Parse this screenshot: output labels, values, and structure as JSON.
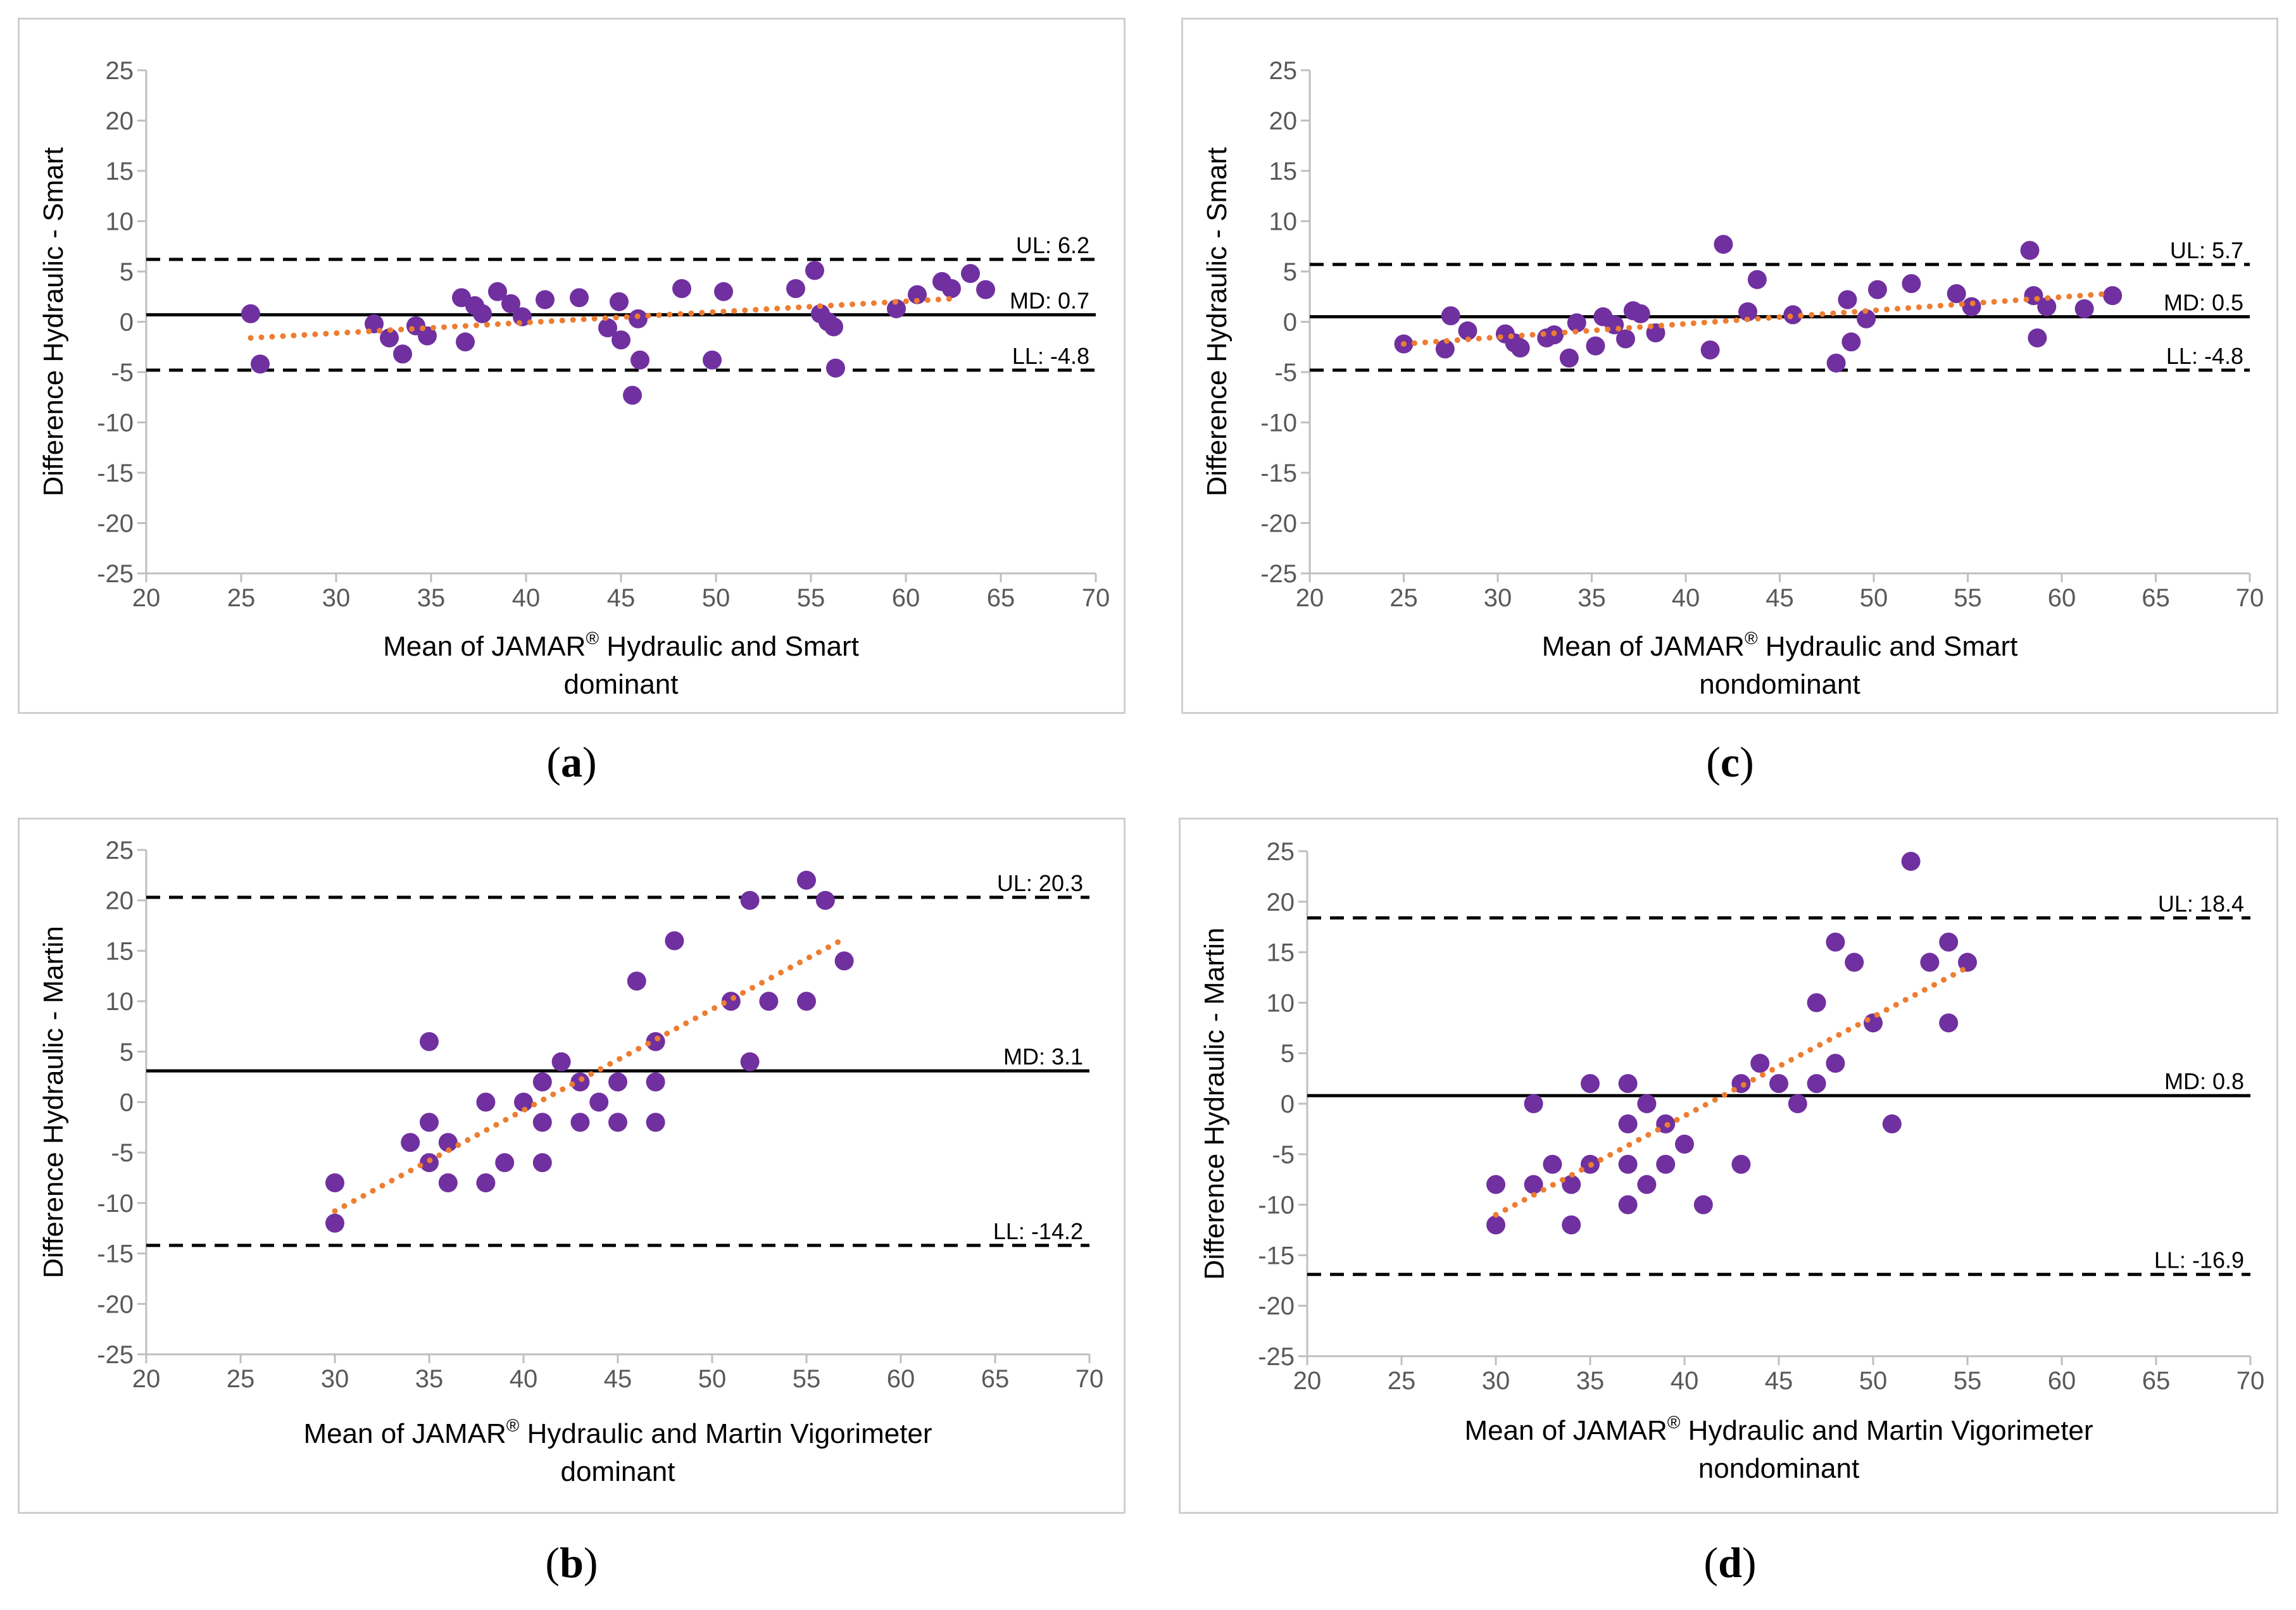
{
  "chart_data": [
    {
      "panel": "a",
      "caption_letter": "a",
      "type": "scatter",
      "ylabel": "Difference Hydraulic - Smart",
      "xlabel_line1_pre": "Mean of JAMAR",
      "xlabel_line1_sup": "®",
      "xlabel_line1_post": " Hydraulic and Smart",
      "xlabel_line2": "dominant",
      "xlim": [
        20,
        70
      ],
      "ylim": [
        -25,
        25
      ],
      "xstep": 5,
      "ystep": 5,
      "limits": [
        {
          "label": "UL: 6.2",
          "value": 6.2,
          "style": "dashed"
        },
        {
          "label": "MD: 0.7",
          "value": 0.7,
          "style": "solid"
        },
        {
          "label": "LL: -4.8",
          "value": -4.8,
          "style": "dashed"
        }
      ],
      "trend": {
        "x0": 25.5,
        "x1": 62.5,
        "y0": -1.6,
        "y1": 2.3
      },
      "points": [
        [
          25.5,
          0.8
        ],
        [
          26,
          -4.2
        ],
        [
          32,
          -0.2
        ],
        [
          32.8,
          -1.6
        ],
        [
          33.5,
          -3.2
        ],
        [
          34.2,
          -0.4
        ],
        [
          34.8,
          -1.4
        ],
        [
          36.6,
          2.4
        ],
        [
          36.8,
          -2
        ],
        [
          37.3,
          1.6
        ],
        [
          37.7,
          0.8
        ],
        [
          38.5,
          3
        ],
        [
          39.2,
          1.8
        ],
        [
          39.8,
          0.5
        ],
        [
          41,
          2.2
        ],
        [
          42.8,
          2.4
        ],
        [
          44.3,
          -0.6
        ],
        [
          44.9,
          2
        ],
        [
          45,
          -1.8
        ],
        [
          45.6,
          -7.3
        ],
        [
          45.9,
          0.3
        ],
        [
          46,
          -3.8
        ],
        [
          48.2,
          3.3
        ],
        [
          49.8,
          -3.8
        ],
        [
          50.4,
          3
        ],
        [
          54.2,
          3.3
        ],
        [
          55.2,
          5.1
        ],
        [
          55.5,
          0.8
        ],
        [
          55.9,
          0
        ],
        [
          56.2,
          -0.5
        ],
        [
          56.3,
          -4.6
        ],
        [
          59.5,
          1.3
        ],
        [
          60.6,
          2.7
        ],
        [
          61.9,
          4
        ],
        [
          62.4,
          3.3
        ],
        [
          63.4,
          4.8
        ],
        [
          64.2,
          3.2
        ]
      ],
      "point_color": "#7030a0",
      "trend_color": "#ed7d31"
    },
    {
      "panel": "c",
      "caption_letter": "c",
      "type": "scatter",
      "ylabel": "Difference Hydraulic - Smart",
      "xlabel_line1_pre": "Mean of JAMAR",
      "xlabel_line1_sup": "®",
      "xlabel_line1_post": " Hydraulic and Smart",
      "xlabel_line2": "nondominant",
      "xlim": [
        20,
        70
      ],
      "ylim": [
        -25,
        25
      ],
      "xstep": 5,
      "ystep": 5,
      "limits": [
        {
          "label": "UL: 5.7",
          "value": 5.7,
          "style": "dashed"
        },
        {
          "label": "MD: 0.5",
          "value": 0.5,
          "style": "solid"
        },
        {
          "label": "LL: -4.8",
          "value": -4.8,
          "style": "dashed"
        }
      ],
      "trend": {
        "x0": 25,
        "x1": 62.5,
        "y0": -2.2,
        "y1": 2.8
      },
      "points": [
        [
          25,
          -2.2
        ],
        [
          27.2,
          -2.7
        ],
        [
          27.5,
          0.6
        ],
        [
          28.4,
          -0.9
        ],
        [
          30.4,
          -1.2
        ],
        [
          30.9,
          -2.1
        ],
        [
          31.2,
          -2.6
        ],
        [
          32.6,
          -1.6
        ],
        [
          33,
          -1.3
        ],
        [
          33.8,
          -3.6
        ],
        [
          34.2,
          -0.1
        ],
        [
          35.2,
          -2.4
        ],
        [
          35.6,
          0.5
        ],
        [
          36.2,
          -0.3
        ],
        [
          36.8,
          -1.7
        ],
        [
          37.2,
          1.1
        ],
        [
          37.6,
          0.8
        ],
        [
          38.4,
          -1.1
        ],
        [
          41.3,
          -2.8
        ],
        [
          42,
          7.7
        ],
        [
          43.3,
          1
        ],
        [
          43.8,
          4.2
        ],
        [
          45.7,
          0.7
        ],
        [
          48,
          -4.1
        ],
        [
          48.6,
          2.2
        ],
        [
          48.8,
          -2
        ],
        [
          49.6,
          0.3
        ],
        [
          50.2,
          3.2
        ],
        [
          52,
          3.8
        ],
        [
          54.4,
          2.8
        ],
        [
          55.2,
          1.5
        ],
        [
          58.3,
          7.1
        ],
        [
          58.5,
          2.6
        ],
        [
          58.7,
          -1.6
        ],
        [
          59.2,
          1.5
        ],
        [
          61.2,
          1.3
        ],
        [
          62.7,
          2.6
        ]
      ],
      "point_color": "#7030a0",
      "trend_color": "#ed7d31"
    },
    {
      "panel": "b",
      "caption_letter": "b",
      "type": "scatter",
      "ylabel": "Difference Hydraulic - Martin",
      "xlabel_line1_pre": "Mean of JAMAR",
      "xlabel_line1_sup": "®",
      "xlabel_line1_post": " Hydraulic and Martin Vigorimeter",
      "xlabel_line2": "dominant",
      "xlim": [
        20,
        70
      ],
      "ylim": [
        -25,
        25
      ],
      "xstep": 5,
      "ystep": 5,
      "limits": [
        {
          "label": "UL: 20.3",
          "value": 20.3,
          "style": "dashed"
        },
        {
          "label": "MD: 3.1",
          "value": 3.1,
          "style": "solid"
        },
        {
          "label": "LL: -14.2",
          "value": -14.2,
          "style": "dashed"
        }
      ],
      "trend": {
        "x0": 30,
        "x1": 57,
        "y0": -10.8,
        "y1": 16.2
      },
      "points": [
        [
          30,
          -8
        ],
        [
          30,
          -12
        ],
        [
          34,
          -4
        ],
        [
          35,
          6
        ],
        [
          35,
          -2
        ],
        [
          35,
          -6
        ],
        [
          36,
          -4
        ],
        [
          36,
          -8
        ],
        [
          38,
          0
        ],
        [
          38,
          -8
        ],
        [
          39,
          -6
        ],
        [
          40,
          0
        ],
        [
          41,
          2
        ],
        [
          41,
          -2
        ],
        [
          41,
          -6
        ],
        [
          42,
          4
        ],
        [
          43,
          2
        ],
        [
          43,
          -2
        ],
        [
          44,
          0
        ],
        [
          45,
          2
        ],
        [
          45,
          -2
        ],
        [
          46,
          12
        ],
        [
          47,
          6
        ],
        [
          47,
          2
        ],
        [
          47,
          -2
        ],
        [
          48,
          16
        ],
        [
          51,
          10
        ],
        [
          52,
          20
        ],
        [
          52,
          4
        ],
        [
          53,
          10
        ],
        [
          55,
          22
        ],
        [
          55,
          10
        ],
        [
          56,
          20
        ],
        [
          57,
          14
        ]
      ],
      "point_color": "#7030a0",
      "trend_color": "#ed7d31"
    },
    {
      "panel": "d",
      "caption_letter": "d",
      "type": "scatter",
      "ylabel": "Difference Hydraulic - Martin",
      "xlabel_line1_pre": "Mean of JAMAR",
      "xlabel_line1_sup": "®",
      "xlabel_line1_post": " Hydraulic and Martin Vigorimeter",
      "xlabel_line2": "nondominant",
      "xlim": [
        20,
        70
      ],
      "ylim": [
        -25,
        25
      ],
      "xstep": 5,
      "ystep": 5,
      "limits": [
        {
          "label": "UL: 18.4",
          "value": 18.4,
          "style": "dashed"
        },
        {
          "label": "MD: 0.8",
          "value": 0.8,
          "style": "solid"
        },
        {
          "label": "LL: -16.9",
          "value": -16.9,
          "style": "dashed"
        }
      ],
      "trend": {
        "x0": 30,
        "x1": 55,
        "y0": -11,
        "y1": 13.5
      },
      "points": [
        [
          30,
          -8
        ],
        [
          30,
          -12
        ],
        [
          32,
          0
        ],
        [
          32,
          -8
        ],
        [
          33,
          -6
        ],
        [
          34,
          -8
        ],
        [
          34,
          -12
        ],
        [
          35,
          2
        ],
        [
          35,
          -6
        ],
        [
          37,
          2
        ],
        [
          37,
          -2
        ],
        [
          37,
          -6
        ],
        [
          37,
          -10
        ],
        [
          38,
          0
        ],
        [
          38,
          -8
        ],
        [
          39,
          -2
        ],
        [
          39,
          -6
        ],
        [
          40,
          -4
        ],
        [
          41,
          -10
        ],
        [
          43,
          2
        ],
        [
          43,
          -6
        ],
        [
          44,
          4
        ],
        [
          45,
          2
        ],
        [
          46,
          0
        ],
        [
          47,
          10
        ],
        [
          47,
          2
        ],
        [
          48,
          16
        ],
        [
          48,
          4
        ],
        [
          49,
          14
        ],
        [
          50,
          8
        ],
        [
          51,
          -2
        ],
        [
          52,
          24
        ],
        [
          53,
          14
        ],
        [
          54,
          16
        ],
        [
          54,
          8
        ],
        [
          55,
          14
        ]
      ],
      "point_color": "#7030a0",
      "trend_color": "#ed7d31"
    }
  ]
}
